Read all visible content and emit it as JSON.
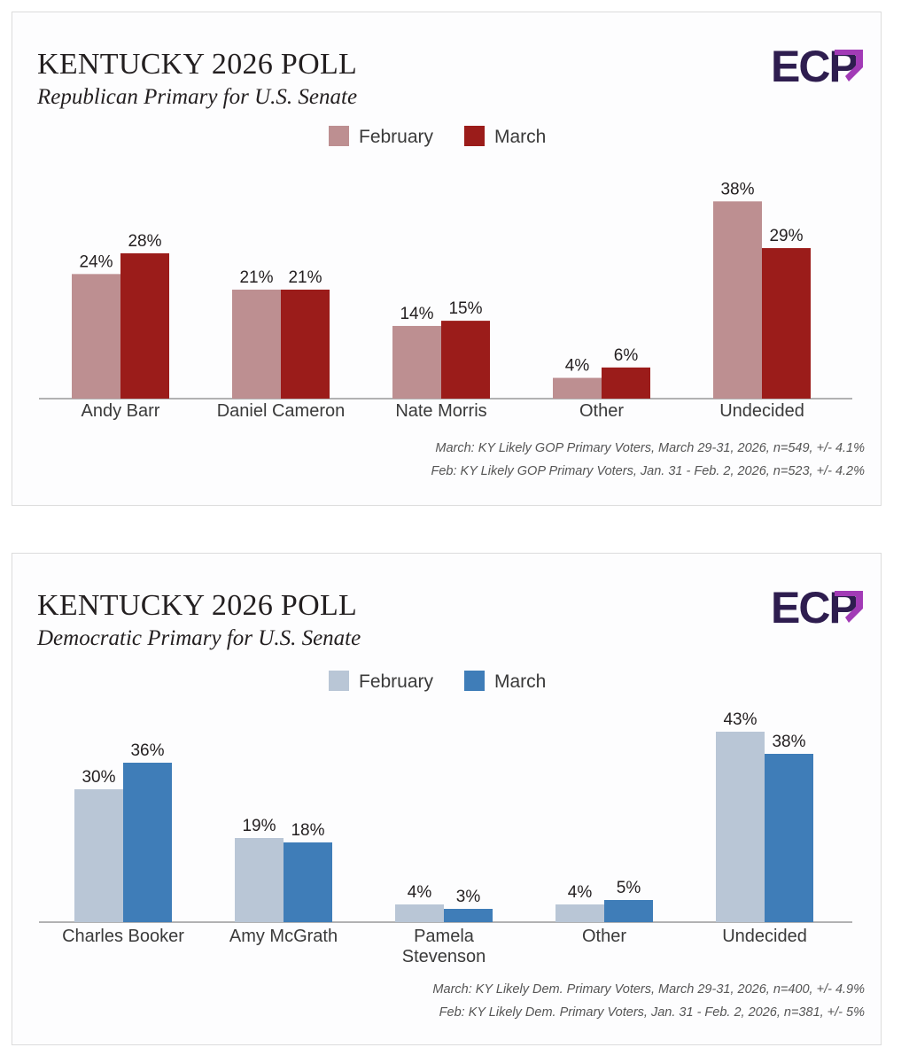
{
  "charts": [
    {
      "title": "KENTUCKY 2026 POLL",
      "subtitle": "Republican Primary for U.S. Senate",
      "logo_text": "ECP",
      "notes": [
        "March: KY Likely GOP Primary Voters, March 29-31, 2026, n=549, +/- 4.1%",
        "Feb: KY Likely GOP Primary Voters, Jan. 31 - Feb. 2, 2026, n=523, +/- 4.2%"
      ],
      "colors": {
        "February": "#bd8f91",
        "March": "#9b1c1a",
        "axis": "#9a9a9a",
        "text": "#231f20"
      }
    },
    {
      "title": "KENTUCKY 2026 POLL",
      "subtitle": "Democratic Primary for U.S. Senate",
      "logo_text": "ECP",
      "notes": [
        "March: KY Likely Dem. Primary Voters, March 29-31, 2026, n=400, +/- 4.9%",
        "Feb: KY Likely Dem. Primary Voters, Jan. 31 - Feb. 2, 2026, n=381, +/- 5%"
      ],
      "colors": {
        "February": "#b9c6d6",
        "March": "#3f7db8",
        "axis": "#9a9a9a",
        "text": "#231f20"
      }
    }
  ],
  "chart_data": [
    {
      "type": "bar",
      "title": "KENTUCKY 2026 POLL",
      "subtitle": "Republican Primary for U.S. Senate",
      "categories": [
        "Andy Barr",
        "Daniel Cameron",
        "Nate Morris",
        "Other",
        "Undecided"
      ],
      "series": [
        {
          "name": "February",
          "values": [
            24,
            21,
            14,
            4,
            38
          ]
        },
        {
          "name": "March",
          "values": [
            28,
            21,
            15,
            6,
            29
          ]
        }
      ],
      "value_suffix": "%",
      "legend": "top-center",
      "grid": false,
      "ylim": [
        0,
        40
      ]
    },
    {
      "type": "bar",
      "title": "KENTUCKY 2026 POLL",
      "subtitle": "Democratic Primary for U.S. Senate",
      "categories": [
        "Charles Booker",
        "Amy McGrath",
        "Pamela Stevenson",
        "Other",
        "Undecided"
      ],
      "series": [
        {
          "name": "February",
          "values": [
            30,
            19,
            4,
            4,
            43
          ]
        },
        {
          "name": "March",
          "values": [
            36,
            18,
            3,
            5,
            38
          ]
        }
      ],
      "value_suffix": "%",
      "legend": "top-center",
      "grid": false,
      "ylim": [
        0,
        45
      ]
    }
  ]
}
